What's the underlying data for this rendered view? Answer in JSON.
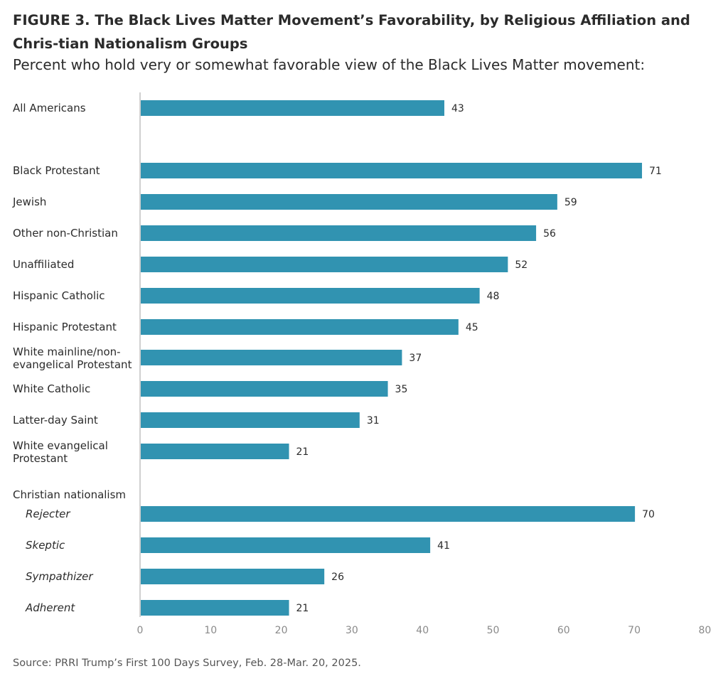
{
  "title": "FIGURE 3. The Black Lives Matter Movement’s Favorability, by Religious Affiliation and Chris-tian Nationalism Groups",
  "subtitle": "Percent who hold very or somewhat favorable view of the Black Lives Matter movement:",
  "source": "Source: PRRI Trump’s First 100 Days Survey, Feb. 28-Mar. 20, 2025.",
  "chart_data": {
    "type": "bar",
    "orientation": "horizontal",
    "title": "FIGURE 3. The Black Lives Matter Movement’s Favorability, by Religious Affiliation and Christian Nationalism Groups",
    "subtitle": "Percent who hold very or somewhat favorable view of the Black Lives Matter movement:",
    "xlim": [
      0,
      80
    ],
    "xticks": [
      0,
      10,
      20,
      30,
      40,
      50,
      60,
      70,
      80
    ],
    "grid": false,
    "bar_color": "#3193b1",
    "group_headers": [
      "Christian nationalism"
    ],
    "categories": [
      "All Americans",
      "Black Protestant",
      "Jewish",
      "Other non-Christian",
      "Unaffiliated",
      "Hispanic Catholic",
      "Hispanic Protestant",
      "White mainline/non-evangelical Protestant",
      "White Catholic",
      "Latter-day Saint",
      "White evangelical Protestant",
      "Rejecter",
      "Skeptic",
      "Sympathizer",
      "Adherent"
    ],
    "values": [
      43,
      71,
      59,
      56,
      52,
      48,
      45,
      37,
      35,
      31,
      21,
      70,
      41,
      26,
      21
    ],
    "bars": [
      {
        "label": [
          "All Americans"
        ],
        "value": 43,
        "italic": false
      },
      {
        "label": [
          "Black Protestant"
        ],
        "value": 71,
        "italic": false
      },
      {
        "label": [
          "Jewish"
        ],
        "value": 59,
        "italic": false
      },
      {
        "label": [
          "Other non-Christian"
        ],
        "value": 56,
        "italic": false
      },
      {
        "label": [
          "Unaffiliated"
        ],
        "value": 52,
        "italic": false
      },
      {
        "label": [
          "Hispanic Catholic"
        ],
        "value": 48,
        "italic": false
      },
      {
        "label": [
          "Hispanic Protestant"
        ],
        "value": 45,
        "italic": false
      },
      {
        "label": [
          "White mainline/non-",
          "evangelical Protestant"
        ],
        "value": 37,
        "italic": false
      },
      {
        "label": [
          "White Catholic"
        ],
        "value": 35,
        "italic": false
      },
      {
        "label": [
          "Latter-day Saint"
        ],
        "value": 31,
        "italic": false
      },
      {
        "label": [
          "White evangelical",
          "Protestant"
        ],
        "value": 21,
        "italic": false
      },
      {
        "label": [
          "Rejecter"
        ],
        "value": 70,
        "italic": true
      },
      {
        "label": [
          "Skeptic"
        ],
        "value": 41,
        "italic": true
      },
      {
        "label": [
          "Sympathizer"
        ],
        "value": 26,
        "italic": true
      },
      {
        "label": [
          "Adherent"
        ],
        "value": 21,
        "italic": true
      }
    ]
  }
}
